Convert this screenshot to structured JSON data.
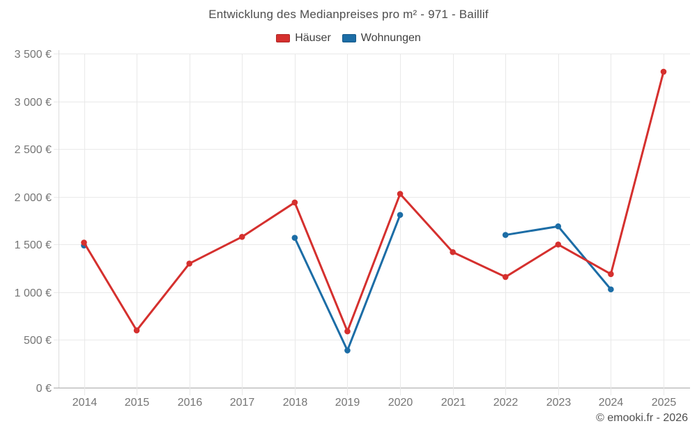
{
  "page": {
    "title": "Entwicklung des Medianpreises pro m² - 971 - Baillif",
    "footer_credit": "© emooki.fr - 2026"
  },
  "legend": {
    "items": [
      {
        "label": "Häuser",
        "color": "#d5302e"
      },
      {
        "label": "Wohnungen",
        "color": "#1c6da6"
      }
    ]
  },
  "chart_data": {
    "type": "line",
    "title": "Entwicklung des Medianpreises pro m² - 971 - Baillif",
    "categories": [
      "2014",
      "2015",
      "2016",
      "2017",
      "2018",
      "2019",
      "2020",
      "2021",
      "2022",
      "2023",
      "2024",
      "2025"
    ],
    "series": [
      {
        "name": "Häuser",
        "color": "#d5302e",
        "values": [
          1520,
          600,
          1300,
          1580,
          1940,
          590,
          2030,
          1420,
          1160,
          1500,
          1190,
          3310
        ]
      },
      {
        "name": "Wohnungen",
        "color": "#1c6da6",
        "values": [
          1490,
          null,
          null,
          null,
          1570,
          390,
          1810,
          null,
          1600,
          1690,
          1030,
          null
        ]
      }
    ],
    "ylim": [
      0,
      3500
    ],
    "y_tick_step": 500,
    "y_ticks": [
      "0 €",
      "500 €",
      "1 000 €",
      "1 500 €",
      "2 000 €",
      "2 500 €",
      "3 000 €",
      "3 500 €"
    ],
    "grid": true,
    "legend_position": "top",
    "xlabel": "",
    "ylabel": "",
    "currency": "€"
  }
}
